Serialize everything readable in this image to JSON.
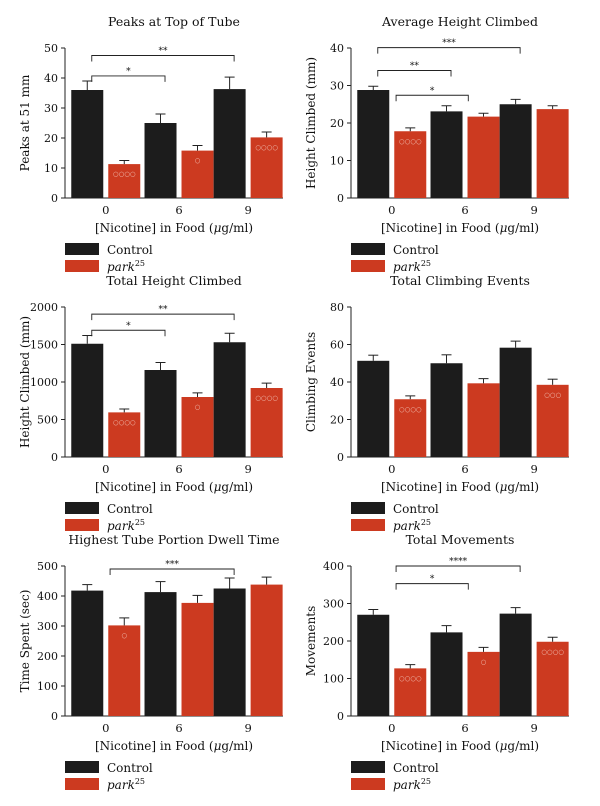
{
  "legend": {
    "control_label": "Control",
    "park_label": "park",
    "park_superscript": "25",
    "control_color": "#1c1c1c",
    "park_color": "#cc3a20"
  },
  "x_axis": {
    "label_prefix": "[Nicotine] in Food (",
    "label_unit_mu": "μ",
    "label_unit_rest": "g/ml)",
    "categories": [
      "0",
      "6",
      "9"
    ]
  },
  "chart_data": [
    {
      "type": "bar",
      "title": "Peaks at Top of Tube",
      "ylabel": "Peaks at 51 mm",
      "ylim": [
        0,
        50
      ],
      "yticks": [
        0,
        10,
        20,
        30,
        40,
        50
      ],
      "categories": [
        "0",
        "6",
        "9"
      ],
      "series": [
        {
          "name": "Control",
          "values": [
            36,
            25,
            36.3
          ],
          "errors": [
            3,
            3,
            4
          ]
        },
        {
          "name": "park25",
          "values": [
            11.3,
            15.8,
            20.2
          ],
          "errors": [
            1.2,
            1.7,
            1.8
          ]
        }
      ],
      "markers": [
        "○○○○",
        "○",
        "○○○○"
      ],
      "brackets": [
        {
          "from": 0,
          "to": 1,
          "level": 40.7,
          "label": "*"
        },
        {
          "from": 0,
          "to": 2,
          "level": 47.5,
          "label": "**"
        }
      ]
    },
    {
      "type": "bar",
      "title": "Average Height Climbed",
      "ylabel": "Height Climbed (mm)",
      "ylim": [
        0,
        40
      ],
      "yticks": [
        0,
        10,
        20,
        30,
        40
      ],
      "categories": [
        "0",
        "6",
        "9"
      ],
      "series": [
        {
          "name": "Control",
          "values": [
            28.8,
            23.1,
            25
          ],
          "errors": [
            1,
            1.5,
            1.3
          ]
        },
        {
          "name": "park25",
          "values": [
            17.8,
            21.7,
            23.7
          ],
          "errors": [
            0.9,
            0.9,
            0.9
          ]
        }
      ],
      "markers": [
        "○○○○",
        "",
        ""
      ],
      "brackets": [
        {
          "from": 0,
          "to": 1,
          "level": 34,
          "label": "**"
        },
        {
          "from": 0.25,
          "to": 1.25,
          "level": 27.4,
          "label": "*"
        },
        {
          "from": 0,
          "to": 2,
          "level": 40.1,
          "label": "***"
        }
      ]
    },
    {
      "type": "bar",
      "title": "Total Height Climbed",
      "ylabel": "Height Climbed (mm)",
      "ylim": [
        0,
        2000
      ],
      "yticks": [
        0,
        500,
        1000,
        1500,
        2000
      ],
      "categories": [
        "0",
        "6",
        "9"
      ],
      "series": [
        {
          "name": "Control",
          "values": [
            1510,
            1160,
            1530
          ],
          "errors": [
            110,
            100,
            120
          ]
        },
        {
          "name": "park25",
          "values": [
            595,
            800,
            920
          ],
          "errors": [
            45,
            55,
            65
          ]
        }
      ],
      "markers": [
        "○○○○",
        "○",
        "○○○○"
      ],
      "brackets": [
        {
          "from": 0,
          "to": 1,
          "level": 1690,
          "label": "*"
        },
        {
          "from": 0,
          "to": 2,
          "level": 1905,
          "label": "**"
        }
      ]
    },
    {
      "type": "bar",
      "title": "Total Climbing Events",
      "ylabel": "Climbing Events",
      "ylim": [
        0,
        80
      ],
      "yticks": [
        0,
        20,
        40,
        60,
        80
      ],
      "categories": [
        "0",
        "6",
        "9"
      ],
      "series": [
        {
          "name": "Control",
          "values": [
            51.3,
            50,
            58.3
          ],
          "errors": [
            3,
            4.5,
            3.5
          ]
        },
        {
          "name": "park25",
          "values": [
            30.8,
            39.3,
            38.5
          ],
          "errors": [
            1.8,
            2.5,
            3
          ]
        }
      ],
      "markers": [
        "○○○○",
        "",
        "○○○"
      ],
      "brackets": []
    },
    {
      "type": "bar",
      "title": "Highest Tube Portion Dwell Time",
      "ylabel": "Time Spent (sec)",
      "ylim": [
        0,
        500
      ],
      "yticks": [
        0,
        100,
        200,
        300,
        400,
        500
      ],
      "categories": [
        "0",
        "6",
        "9"
      ],
      "series": [
        {
          "name": "Control",
          "values": [
            418,
            413,
            425
          ],
          "errors": [
            20,
            35,
            35
          ]
        },
        {
          "name": "park25",
          "values": [
            302,
            377,
            438
          ],
          "errors": [
            25,
            25,
            25
          ]
        }
      ],
      "markers": [
        "○",
        "",
        ""
      ],
      "brackets": [
        {
          "from": 0.25,
          "to": 2.25,
          "level": 490,
          "label": "***"
        }
      ]
    },
    {
      "type": "bar",
      "title": "Total Movements",
      "ylabel": "Movements",
      "ylim": [
        0,
        400
      ],
      "yticks": [
        0,
        100,
        200,
        300,
        400
      ],
      "categories": [
        "0",
        "6",
        "9"
      ],
      "series": [
        {
          "name": "Control",
          "values": [
            270,
            223,
            273
          ],
          "errors": [
            14,
            18,
            16
          ]
        },
        {
          "name": "park25",
          "values": [
            127,
            171,
            198
          ],
          "errors": [
            10,
            12,
            12
          ]
        }
      ],
      "markers": [
        "○○○○",
        "○",
        "○○○○"
      ],
      "brackets": [
        {
          "from": 0.25,
          "to": 1.25,
          "level": 353,
          "label": "*"
        },
        {
          "from": 0.25,
          "to": 2.25,
          "level": 400,
          "label": "****"
        }
      ]
    }
  ]
}
